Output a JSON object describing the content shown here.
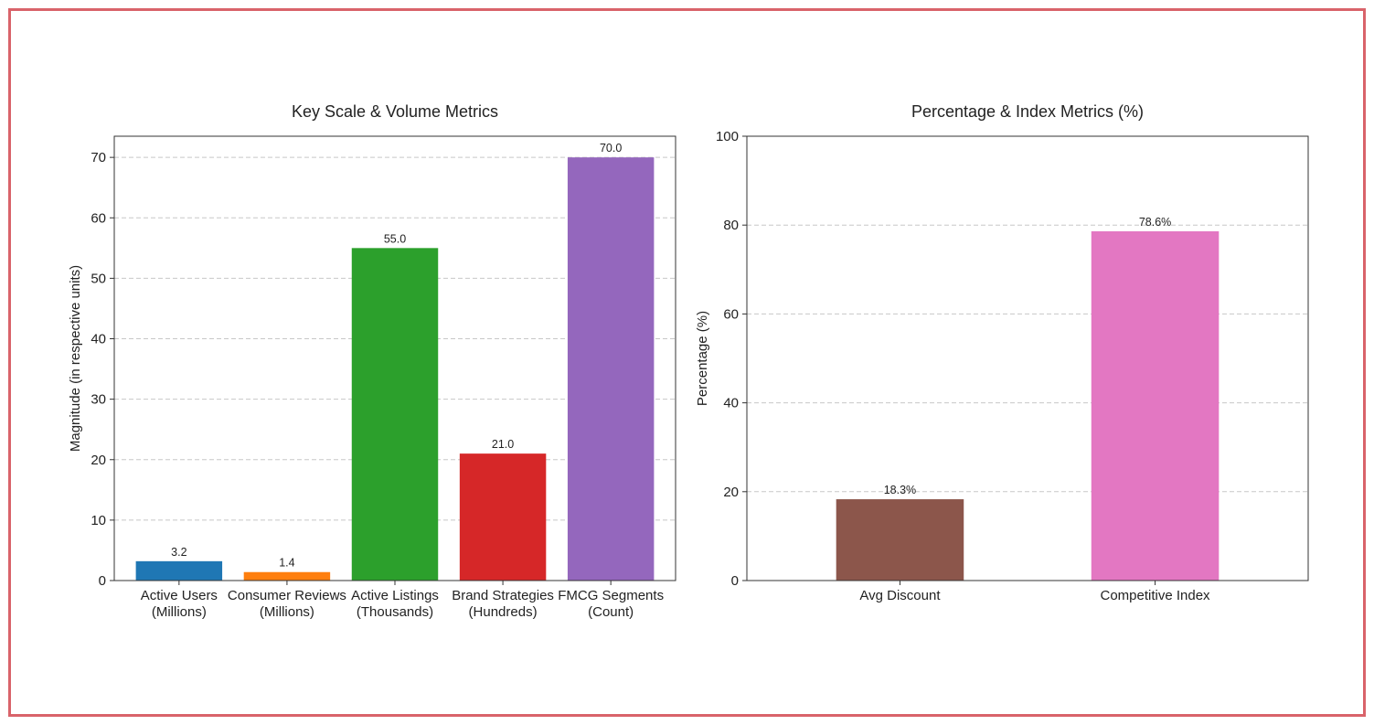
{
  "colors": {
    "frame": "#d9636a"
  },
  "chart_data": [
    {
      "type": "bar",
      "title": "Key Scale & Volume Metrics",
      "xlabel": "",
      "ylabel": "Magnitude (in respective units)",
      "ylim": [
        0,
        73.5
      ],
      "yticks": [
        0,
        10,
        20,
        30,
        40,
        50,
        60,
        70
      ],
      "grid": "y-dashed",
      "categories": [
        [
          "Active Users",
          "(Millions)"
        ],
        [
          "Consumer Reviews",
          "(Millions)"
        ],
        [
          "Active Listings",
          "(Thousands)"
        ],
        [
          "Brand Strategies",
          "(Hundreds)"
        ],
        [
          "FMCG Segments",
          "(Count)"
        ]
      ],
      "values": [
        3.2,
        1.4,
        55.0,
        21.0,
        70.0
      ],
      "value_labels": [
        "3.2",
        "1.4",
        "55.0",
        "21.0",
        "70.0"
      ],
      "colors": [
        "#1f77b4",
        "#ff7f0e",
        "#2ca02c",
        "#d62728",
        "#9467bd"
      ]
    },
    {
      "type": "bar",
      "title": "Percentage & Index Metrics (%)",
      "xlabel": "",
      "ylabel": "Percentage (%)",
      "ylim": [
        0,
        100
      ],
      "yticks": [
        0,
        20,
        40,
        60,
        80,
        100
      ],
      "grid": "y-dashed",
      "categories": [
        [
          "Avg Discount"
        ],
        [
          "Competitive Index"
        ]
      ],
      "values": [
        18.3,
        78.6
      ],
      "value_labels": [
        "18.3%",
        "78.6%"
      ],
      "colors": [
        "#8c564b",
        "#e377c2"
      ]
    }
  ]
}
